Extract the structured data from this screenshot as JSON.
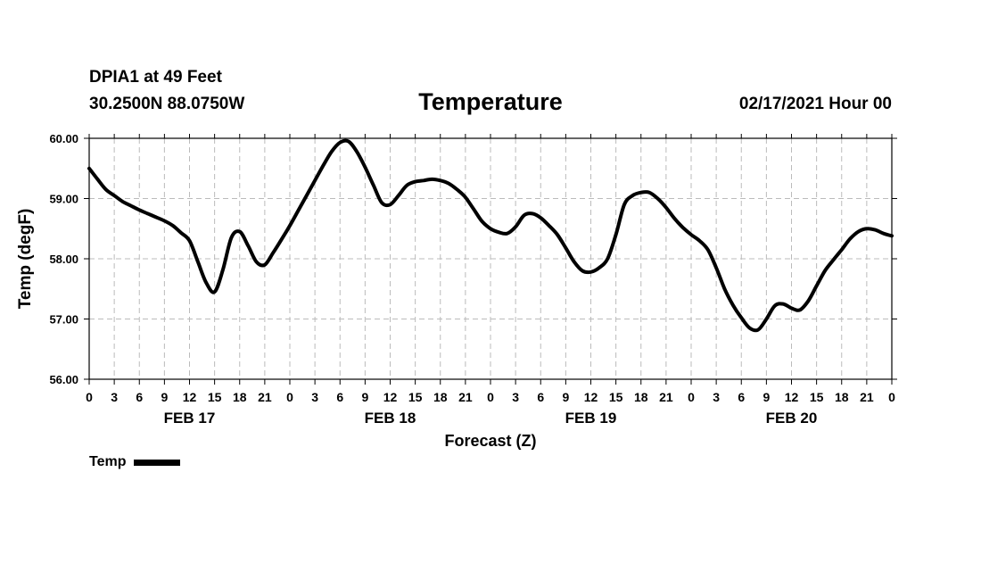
{
  "header": {
    "station": "DPIA1 at 49 Feet",
    "coords": "30.2500N 88.0750W",
    "datetime": "02/17/2021 Hour 00"
  },
  "chart_data": {
    "type": "line",
    "title": "Temperature",
    "xlabel": "Forecast (Z)",
    "ylabel": "Temp (degF)",
    "ylim": [
      56.0,
      60.0
    ],
    "xlim": [
      0,
      96
    ],
    "grid": true,
    "y_ticks": [
      "60.00",
      "59.00",
      "58.00",
      "57.00",
      "56.00"
    ],
    "y_tick_values": [
      60,
      59,
      58,
      57,
      56
    ],
    "x_tick_hours": [
      0,
      3,
      6,
      9,
      12,
      15,
      18,
      21,
      24,
      27,
      30,
      33,
      36,
      39,
      42,
      45,
      48,
      51,
      54,
      57,
      60,
      63,
      66,
      69,
      72,
      75,
      78,
      81,
      84,
      87,
      90,
      93,
      96
    ],
    "x_tick_labels": [
      "0",
      "3",
      "6",
      "9",
      "12",
      "15",
      "18",
      "21",
      "0",
      "3",
      "6",
      "9",
      "12",
      "15",
      "18",
      "21",
      "0",
      "3",
      "6",
      "9",
      "12",
      "15",
      "18",
      "21",
      "0",
      "3",
      "6",
      "9",
      "12",
      "15",
      "18",
      "21",
      "0"
    ],
    "date_labels": [
      {
        "text": "FEB 17",
        "hour": 12
      },
      {
        "text": "FEB 18",
        "hour": 36
      },
      {
        "text": "FEB 19",
        "hour": 60
      },
      {
        "text": "FEB 20",
        "hour": 84
      }
    ],
    "legend": "top-left below axis",
    "series": [
      {
        "name": "Temp",
        "x": [
          0,
          1,
          2,
          3,
          4,
          5,
          6,
          7,
          8,
          9,
          10,
          11,
          12,
          13,
          14,
          15,
          16,
          17,
          18,
          19,
          20,
          21,
          22,
          23,
          24,
          25,
          26,
          27,
          28,
          29,
          30,
          31,
          32,
          33,
          34,
          35,
          36,
          37,
          38,
          39,
          40,
          41,
          42,
          43,
          44,
          45,
          46,
          47,
          48,
          49,
          50,
          51,
          52,
          53,
          54,
          55,
          56,
          57,
          58,
          59,
          60,
          61,
          62,
          63,
          64,
          65,
          66,
          67,
          68,
          69,
          70,
          71,
          72,
          73,
          74,
          75,
          76,
          77,
          78,
          79,
          80,
          81,
          82,
          83,
          84,
          85,
          86,
          87,
          88,
          89,
          90,
          91,
          92,
          93,
          94,
          95,
          96
        ],
        "values": [
          59.5,
          59.32,
          59.15,
          59.05,
          58.95,
          58.88,
          58.81,
          58.75,
          58.69,
          58.63,
          58.55,
          58.43,
          58.3,
          57.95,
          57.6,
          57.45,
          57.82,
          58.35,
          58.45,
          58.22,
          57.95,
          57.9,
          58.1,
          58.32,
          58.55,
          58.8,
          59.05,
          59.3,
          59.55,
          59.78,
          59.93,
          59.95,
          59.78,
          59.52,
          59.22,
          58.93,
          58.9,
          59.05,
          59.22,
          59.28,
          59.3,
          59.32,
          59.3,
          59.25,
          59.15,
          59.02,
          58.82,
          58.62,
          58.5,
          58.44,
          58.42,
          58.53,
          58.72,
          58.75,
          58.68,
          58.55,
          58.4,
          58.18,
          57.95,
          57.8,
          57.78,
          57.85,
          58.0,
          58.4,
          58.9,
          59.05,
          59.1,
          59.1,
          59.0,
          58.85,
          58.67,
          58.52,
          58.4,
          58.3,
          58.15,
          57.85,
          57.5,
          57.23,
          57.02,
          56.85,
          56.82,
          57.0,
          57.22,
          57.25,
          57.18,
          57.15,
          57.3,
          57.55,
          57.8,
          57.98,
          58.15,
          58.33,
          58.45,
          58.5,
          58.48,
          58.42,
          58.38
        ]
      }
    ]
  }
}
